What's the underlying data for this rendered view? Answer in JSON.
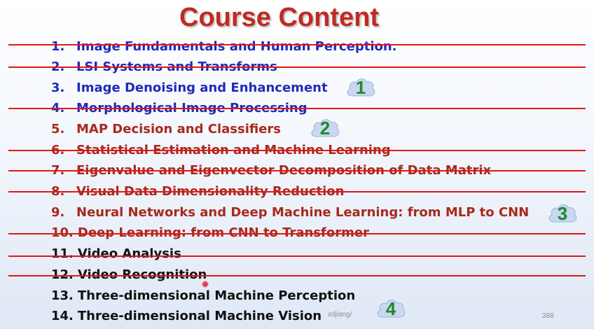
{
  "slide": {
    "title": "Course Content",
    "items": [
      {
        "num": "1.",
        "text": "Image Fundamentals and Human Perception."
      },
      {
        "num": "2.",
        "text": "LSI Systems and Transforms"
      },
      {
        "num": "3.",
        "text": "Image Denoising and Enhancement"
      },
      {
        "num": "4.",
        "text": "Morphological Image Processing"
      },
      {
        "num": "5.",
        "text": "MAP Decision and Classifiers"
      },
      {
        "num": "6.",
        "text": "Statistical Estimation and Machine Learning"
      },
      {
        "num": "7.",
        "text": "Eigenvalue and Eigenvector Decomposition of Data Matrix"
      },
      {
        "num": "8.",
        "text": "Visual Data Dimensionality Reduction"
      },
      {
        "num": "9.",
        "text": "Neural Networks and Deep Machine Learning: from MLP to CNN"
      },
      {
        "num": "10.",
        "text": "Deep Learning: from CNN to Transformer"
      },
      {
        "num": "11.",
        "text": "Video Analysis"
      },
      {
        "num": "12.",
        "text": "Video Recognition"
      },
      {
        "num": "13.",
        "text": "Three-dimensional Machine Perception"
      },
      {
        "num": "14.",
        "text": "Three-dimensional Machine Vision"
      }
    ],
    "clouds": [
      "1",
      "2",
      "3",
      "4"
    ],
    "footer_url": "xdjiang/",
    "page_number": "388"
  },
  "colors": {
    "title": "#c02a22",
    "blue_text": "#1f2bb8",
    "red_text": "#a8291d",
    "black_text": "#111111",
    "strike": "#e01818",
    "cloud_fill": "#c9d7f2",
    "cloud_number": "#1d8a2a"
  }
}
